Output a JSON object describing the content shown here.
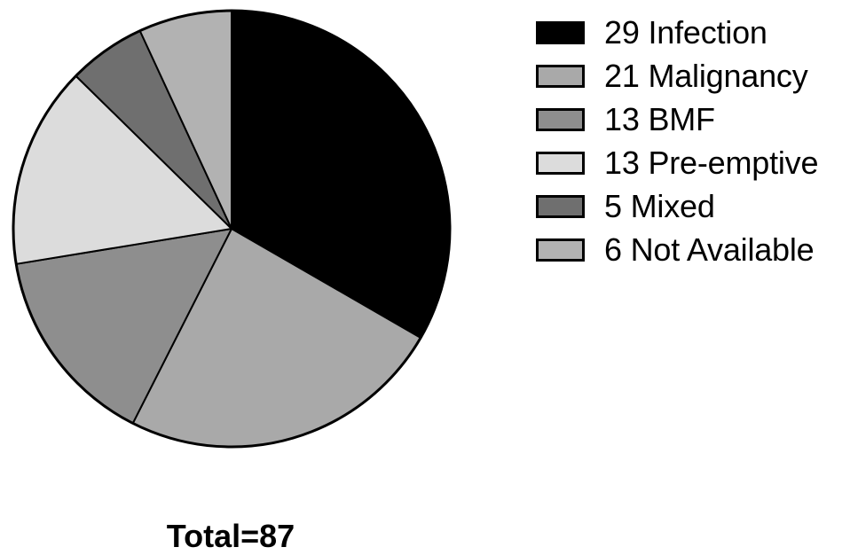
{
  "chart_data": {
    "type": "pie",
    "start_angle_deg": 0,
    "direction": "clockwise",
    "slices": [
      {
        "value": 29,
        "label": "Infection",
        "legend_text": "29 Infection",
        "color": "#000000"
      },
      {
        "value": 21,
        "label": "Malignancy",
        "legend_text": "21 Malignancy",
        "color": "#a9a9a9"
      },
      {
        "value": 13,
        "label": "BMF",
        "legend_text": "13 BMF",
        "color": "#8e8e8e"
      },
      {
        "value": 13,
        "label": "Pre-emptive",
        "legend_text": "13 Pre-emptive",
        "color": "#dcdcdc"
      },
      {
        "value": 5,
        "label": "Mixed",
        "legend_text": "5 Mixed",
        "color": "#6f6f6f"
      },
      {
        "value": 6,
        "label": "Not Available",
        "legend_text": "6 Not Available",
        "color": "#b2b2b2"
      }
    ],
    "total_text": "Total=87",
    "legend_position": "right"
  }
}
